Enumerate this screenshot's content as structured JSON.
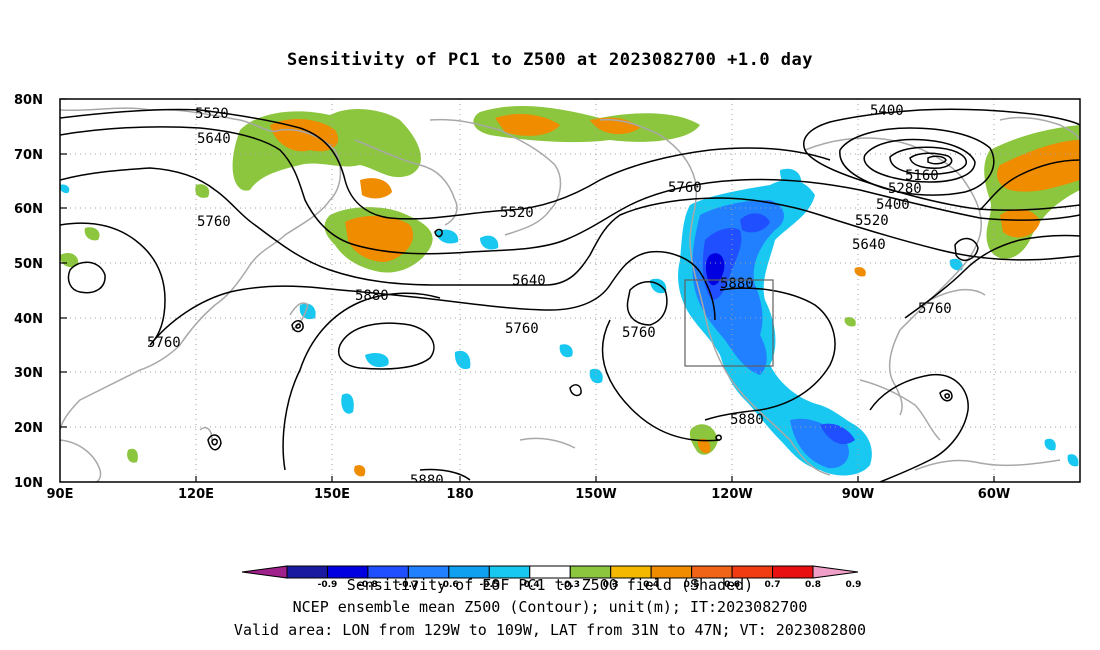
{
  "title": "Sensitivity of PC1 to Z500 at 2023082700 +1.0 day",
  "y_axis_labels": [
    "80N",
    "70N",
    "60N",
    "50N",
    "40N",
    "30N",
    "20N",
    "10N"
  ],
  "x_axis_labels": [
    "90E",
    "120E",
    "150E",
    "180",
    "150W",
    "120W",
    "90W",
    "60W"
  ],
  "contour_labels": [
    "5520",
    "5640",
    "5760",
    "5880",
    "5400",
    "5160",
    "5280",
    "5520",
    "5640",
    "5760",
    "5640",
    "5760",
    "5880",
    "5760",
    "5760",
    "5880",
    "5880"
  ],
  "colorbar": {
    "tick_labels": [
      "-0.9",
      "-0.8",
      "-0.7",
      "-0.6",
      "-0.5",
      "-0.4",
      "-0.3",
      "0.3",
      "0.4",
      "0.5",
      "0.6",
      "0.7",
      "0.8",
      "0.9"
    ],
    "colors": [
      "#a0208c",
      "#1a1aa0",
      "#0000e0",
      "#1f4fff",
      "#2080ff",
      "#10a0f0",
      "#18c8f0",
      "#ffffff",
      "#8cc63e",
      "#f5b800",
      "#f08c00",
      "#f06418",
      "#f03c10",
      "#e81010",
      "#f0a0c8"
    ]
  },
  "captions": [
    "Sensitivity of EOF PC1 to Z500 field (Shaded)",
    "NCEP ensemble mean Z500 (Contour); unit(m); IT:2023082700",
    "Valid area: LON from 129W to 109W, LAT from 31N to 47N; VT: 2023082800"
  ]
}
